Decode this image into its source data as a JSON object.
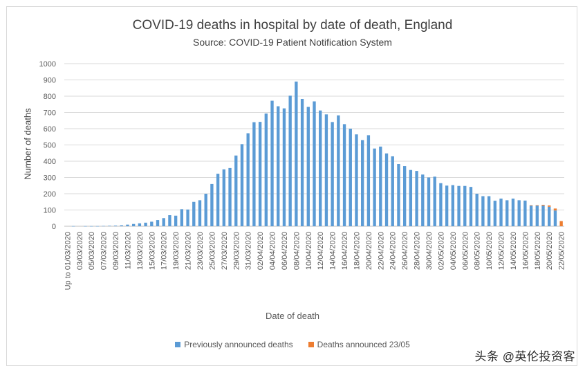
{
  "chart_data": {
    "type": "bar",
    "stacked": true,
    "title": "COVID-19 deaths in hospital by date of death, England",
    "subtitle": "Source: COVID-19 Patient Notification System",
    "xlabel": "Date of death",
    "ylabel": "Number of deaths",
    "ylim": [
      0,
      1000
    ],
    "yticks": [
      0,
      100,
      200,
      300,
      400,
      500,
      600,
      700,
      800,
      900,
      1000
    ],
    "grid": true,
    "legend_position": "bottom",
    "categories": [
      "Up to 01/03/2020",
      "02/03/2020",
      "03/03/2020",
      "04/03/2020",
      "05/03/2020",
      "06/03/2020",
      "07/03/2020",
      "08/03/2020",
      "09/03/2020",
      "10/03/2020",
      "11/03/2020",
      "12/03/2020",
      "13/03/2020",
      "14/03/2020",
      "15/03/2020",
      "16/03/2020",
      "17/03/2020",
      "18/03/2020",
      "19/03/2020",
      "20/03/2020",
      "21/03/2020",
      "22/03/2020",
      "23/03/2020",
      "24/03/2020",
      "25/03/2020",
      "26/03/2020",
      "27/03/2020",
      "28/03/2020",
      "29/03/2020",
      "30/03/2020",
      "31/03/2020",
      "01/04/2020",
      "02/04/2020",
      "03/04/2020",
      "04/04/2020",
      "05/04/2020",
      "06/04/2020",
      "07/04/2020",
      "08/04/2020",
      "09/04/2020",
      "10/04/2020",
      "11/04/2020",
      "12/04/2020",
      "13/04/2020",
      "14/04/2020",
      "15/04/2020",
      "16/04/2020",
      "17/04/2020",
      "18/04/2020",
      "19/04/2020",
      "20/04/2020",
      "21/04/2020",
      "22/04/2020",
      "23/04/2020",
      "24/04/2020",
      "25/04/2020",
      "26/04/2020",
      "27/04/2020",
      "28/04/2020",
      "29/04/2020",
      "30/04/2020",
      "01/05/2020",
      "02/05/2020",
      "03/05/2020",
      "04/05/2020",
      "05/05/2020",
      "06/05/2020",
      "07/05/2020",
      "08/05/2020",
      "09/05/2020",
      "10/05/2020",
      "11/05/2020",
      "12/05/2020",
      "13/05/2020",
      "14/05/2020",
      "15/05/2020",
      "16/05/2020",
      "17/05/2020",
      "18/05/2020",
      "19/05/2020",
      "20/05/2020",
      "21/05/2020",
      "22/05/2020"
    ],
    "series": [
      {
        "name": "Previously announced deaths",
        "color": "#5B9BD5",
        "values": [
          0,
          1,
          0,
          1,
          1,
          1,
          2,
          3,
          4,
          6,
          10,
          14,
          18,
          22,
          28,
          38,
          50,
          68,
          65,
          105,
          103,
          150,
          160,
          200,
          260,
          323,
          350,
          358,
          435,
          505,
          572,
          640,
          642,
          693,
          772,
          738,
          725,
          803,
          890,
          783,
          734,
          768,
          712,
          688,
          641,
          682,
          628,
          600,
          565,
          530,
          560,
          478,
          490,
          448,
          430,
          383,
          370,
          346,
          340,
          318,
          300,
          305,
          265,
          250,
          253,
          248,
          248,
          242,
          200,
          185,
          185,
          157,
          170,
          160,
          170,
          160,
          158,
          128,
          127,
          127,
          120,
          97,
          0
        ]
      },
      {
        "name": "Deaths announced 23/05",
        "color": "#ED7D31",
        "values": [
          0,
          0,
          0,
          0,
          0,
          0,
          0,
          0,
          0,
          0,
          0,
          0,
          0,
          0,
          0,
          0,
          0,
          0,
          0,
          0,
          0,
          0,
          0,
          0,
          0,
          0,
          0,
          0,
          0,
          0,
          0,
          0,
          0,
          0,
          0,
          0,
          0,
          0,
          0,
          0,
          0,
          0,
          0,
          0,
          0,
          0,
          0,
          0,
          0,
          0,
          0,
          0,
          0,
          0,
          0,
          0,
          0,
          0,
          0,
          0,
          0,
          0,
          0,
          0,
          0,
          0,
          0,
          0,
          0,
          0,
          0,
          0,
          0,
          0,
          0,
          0,
          0,
          1,
          3,
          5,
          8,
          12,
          32
        ]
      }
    ]
  },
  "watermark": "头条 @英伦投资客"
}
